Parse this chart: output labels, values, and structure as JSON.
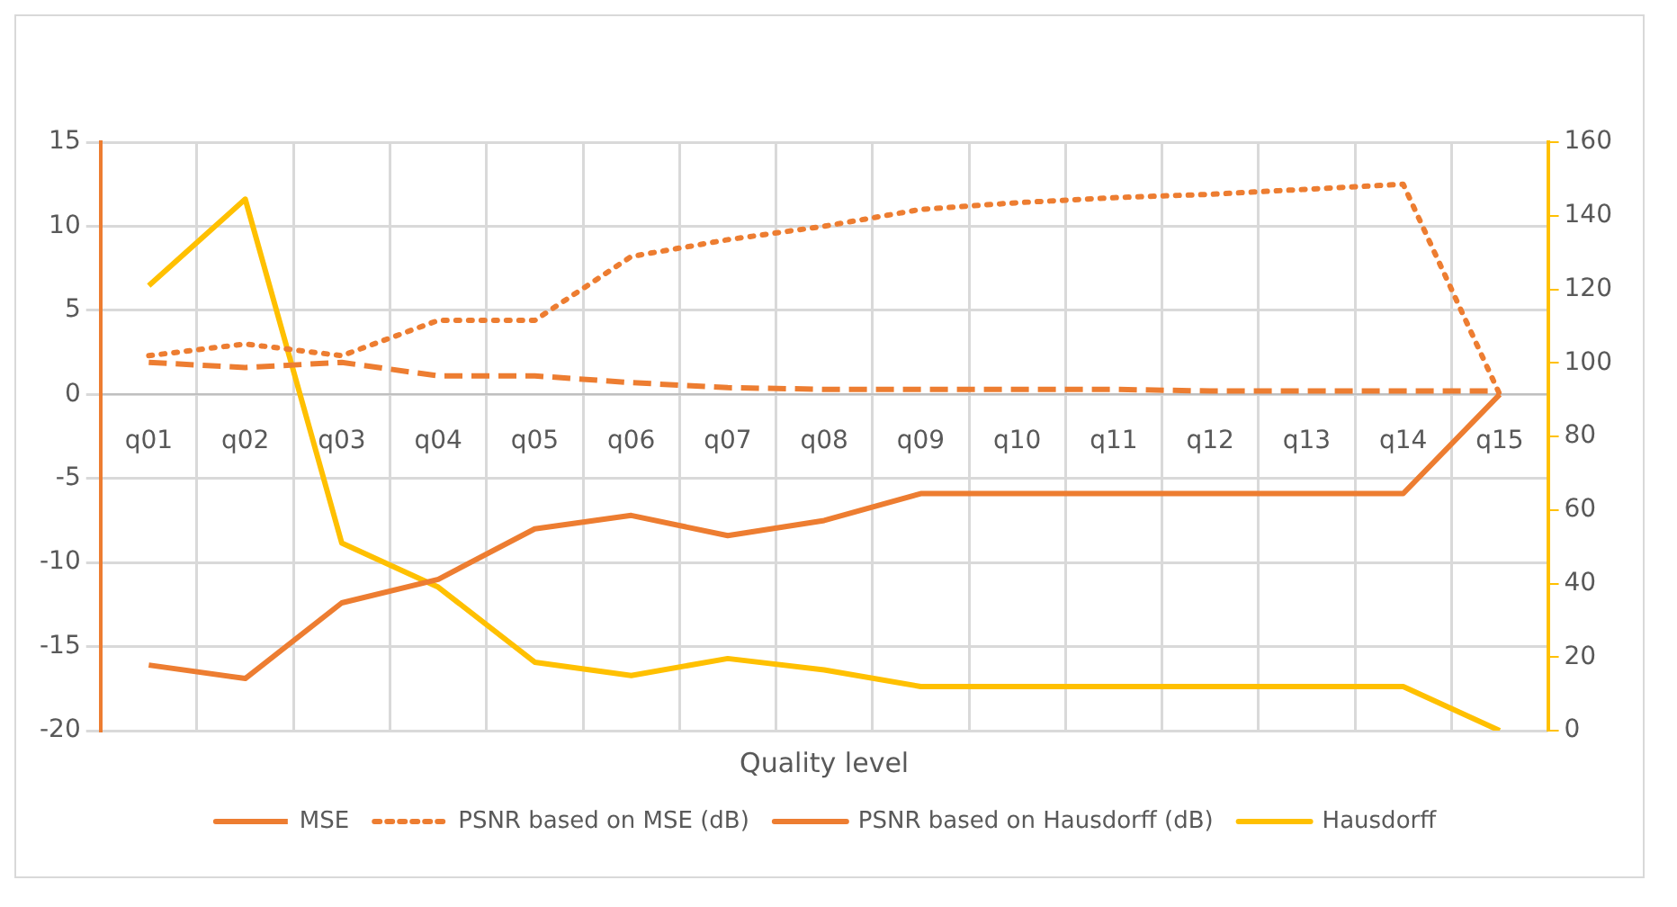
{
  "chart_data": {
    "type": "line",
    "xlabel": "Quality level",
    "categories": [
      "q01",
      "q02",
      "q03",
      "q04",
      "q05",
      "q06",
      "q07",
      "q08",
      "q09",
      "q10",
      "q11",
      "q12",
      "q13",
      "q14",
      "q15"
    ],
    "series": [
      {
        "name": "MSE",
        "color": "#ed7d31",
        "line_style": "dashed",
        "values": [
          1.9,
          1.6,
          1.9,
          1.1,
          1.1,
          0.7,
          0.4,
          0.3,
          0.3,
          0.3,
          0.3,
          0.2,
          0.2,
          0.2,
          0.2
        ]
      },
      {
        "name": "PSNR based on MSE (dB)",
        "color": "#ed7d31",
        "line_style": "dotted",
        "values": [
          2.3,
          3.0,
          2.3,
          4.4,
          4.4,
          8.2,
          9.2,
          10.0,
          11.0,
          11.4,
          11.7,
          11.9,
          12.2,
          12.5,
          0
        ]
      },
      {
        "name": "PSNR based on Hausdorff (dB)",
        "color": "#ed7d31",
        "line_style": "solid",
        "values": [
          -16.1,
          -16.9,
          -12.4,
          -11.0,
          -8.0,
          -7.2,
          -8.4,
          -7.5,
          -5.9,
          -5.9,
          -5.9,
          -5.9,
          -5.9,
          -5.9,
          0
        ]
      },
      {
        "name": "Hausdorff",
        "color": "#ffc000",
        "line_style": "solid",
        "axis": "y2",
        "values": [
          121,
          144.5,
          51,
          39,
          18.6,
          15,
          19.6,
          16.5,
          12,
          12,
          12,
          12,
          12,
          12,
          0
        ]
      }
    ],
    "ylim": [
      -20,
      15
    ],
    "yticks": [
      -20,
      -15,
      -10,
      -5,
      0,
      5,
      10,
      15
    ],
    "y2lim": [
      0,
      160
    ],
    "y2ticks": [
      0,
      20,
      40,
      60,
      80,
      100,
      120,
      140,
      160
    ],
    "grid": true,
    "legend": "bottom",
    "marker": "none"
  }
}
